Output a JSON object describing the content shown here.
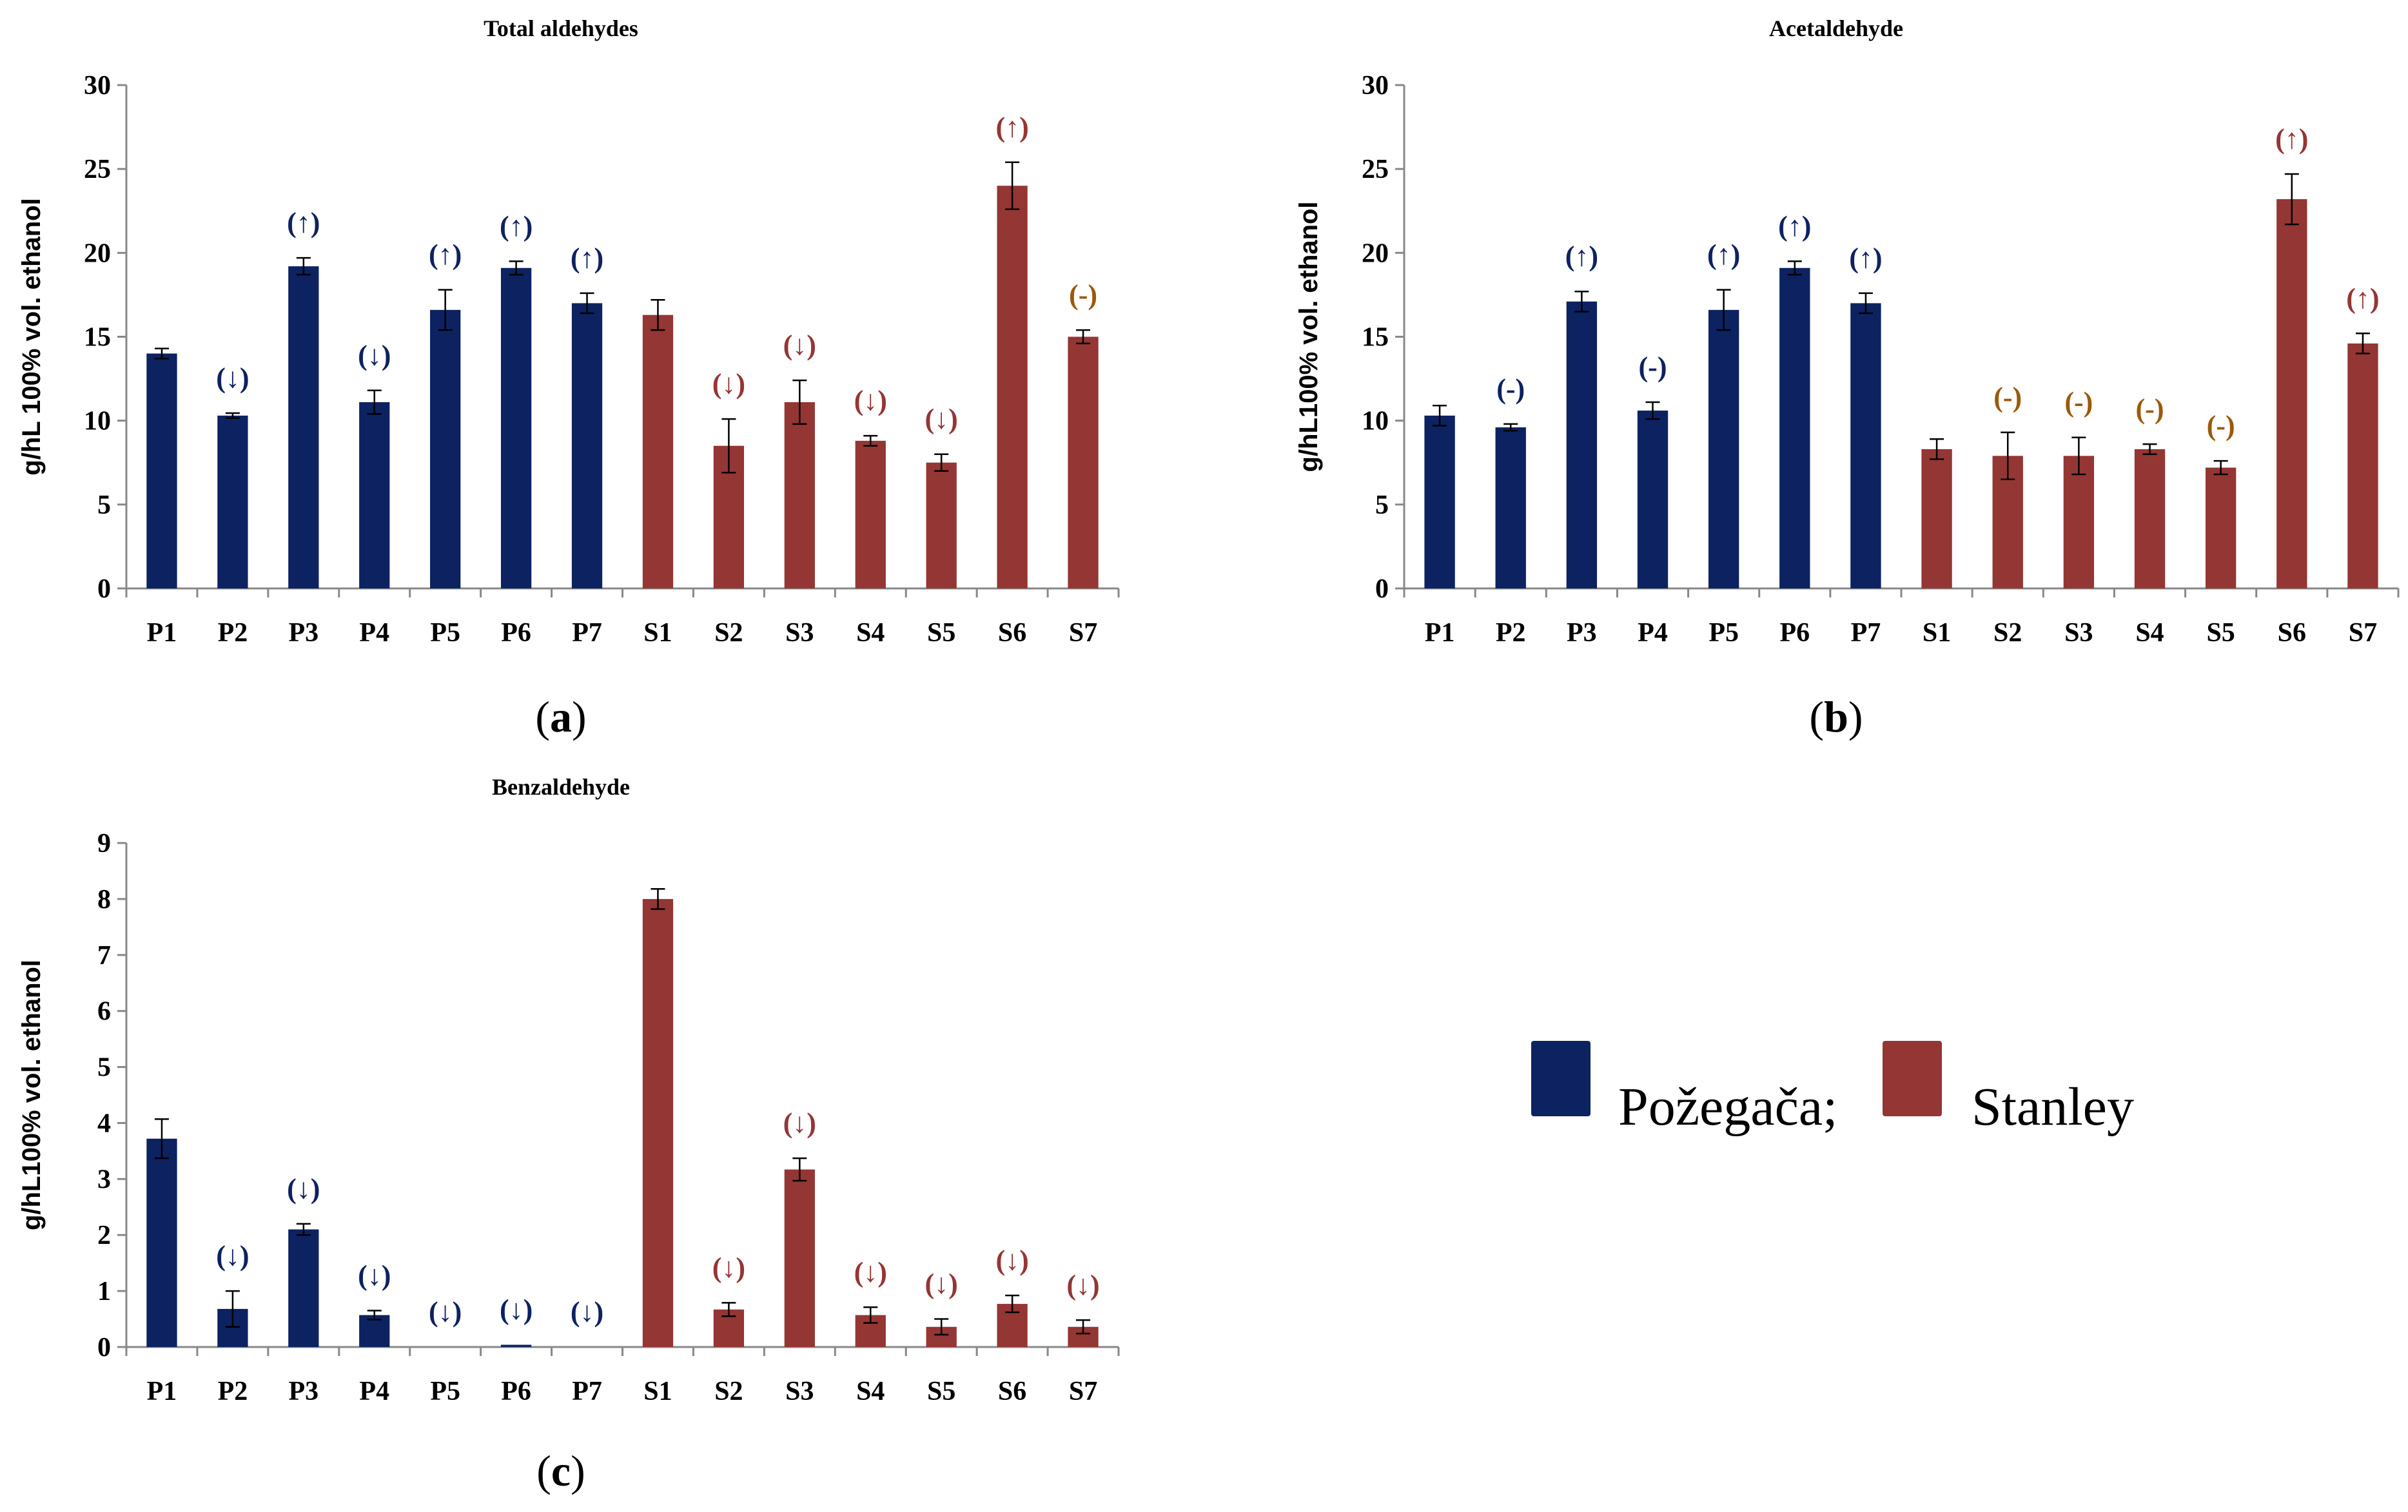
{
  "colors": {
    "pozegaca": "#0d2260",
    "stanley": "#943634",
    "neutral": "#9b5a0a",
    "axis": "#888888",
    "error": "#000000"
  },
  "legend": {
    "pozegaca_label": "Požegača;",
    "stanley_label": "Stanley"
  },
  "chart_data": [
    {
      "id": "a",
      "type": "bar",
      "title": "Total aldehydes",
      "ylabel": "g/hL 100% vol. ethanol",
      "xlabel": "",
      "caption_open": "(",
      "caption_letter": "a",
      "caption_close": ")",
      "ylim": [
        0,
        30
      ],
      "yticks": [
        "0",
        "5",
        "10",
        "15",
        "20",
        "25",
        "30"
      ],
      "categories": [
        "P1",
        "P2",
        "P3",
        "P4",
        "P5",
        "P6",
        "P7",
        "S1",
        "S2",
        "S3",
        "S4",
        "S5",
        "S6",
        "S7"
      ],
      "values": [
        14.0,
        10.3,
        19.2,
        11.1,
        16.6,
        19.1,
        17.0,
        16.3,
        8.5,
        11.1,
        8.8,
        7.5,
        24.0,
        15.0
      ],
      "errors": [
        0.3,
        0.15,
        0.5,
        0.7,
        1.2,
        0.4,
        0.6,
        0.9,
        1.6,
        1.3,
        0.3,
        0.5,
        1.4,
        0.4
      ],
      "groups": [
        "P",
        "P",
        "P",
        "P",
        "P",
        "P",
        "P",
        "S",
        "S",
        "S",
        "S",
        "S",
        "S",
        "S"
      ],
      "annotations": [
        "",
        "(↓)",
        "(↑)",
        "(↓)",
        "(↑)",
        "(↑)",
        "(↑)",
        "",
        "(↓)",
        "(↓)",
        "(↓)",
        "(↓)",
        "(↑)",
        "(-)"
      ],
      "annotation_styles": [
        "",
        "P",
        "P",
        "P",
        "P",
        "P",
        "P",
        "",
        "S",
        "S",
        "S",
        "S",
        "S",
        "N"
      ]
    },
    {
      "id": "b",
      "type": "bar",
      "title": "Acetaldehyde",
      "ylabel": "g/hL100% vol. ethanol",
      "xlabel": "",
      "caption_open": "(",
      "caption_letter": "b",
      "caption_close": ")",
      "ylim": [
        0,
        30
      ],
      "yticks": [
        "0",
        "5",
        "10",
        "15",
        "20",
        "25",
        "30"
      ],
      "categories": [
        "P1",
        "P2",
        "P3",
        "P4",
        "P5",
        "P6",
        "P7",
        "S1",
        "S2",
        "S3",
        "S4",
        "S5",
        "S6",
        "S7"
      ],
      "values": [
        10.3,
        9.6,
        17.1,
        10.6,
        16.6,
        19.1,
        17.0,
        8.3,
        7.9,
        7.9,
        8.3,
        7.2,
        23.2,
        14.6
      ],
      "errors": [
        0.6,
        0.2,
        0.6,
        0.5,
        1.2,
        0.4,
        0.6,
        0.6,
        1.4,
        1.1,
        0.3,
        0.4,
        1.5,
        0.6
      ],
      "groups": [
        "P",
        "P",
        "P",
        "P",
        "P",
        "P",
        "P",
        "S",
        "S",
        "S",
        "S",
        "S",
        "S",
        "S"
      ],
      "annotations": [
        "",
        "(-)",
        "(↑)",
        "(-)",
        "(↑)",
        "(↑)",
        "(↑)",
        "",
        "(-)",
        "(-)",
        "(-)",
        "(-)",
        "(↑)",
        "(↑)"
      ],
      "annotation_styles": [
        "",
        "P",
        "P",
        "P",
        "P",
        "P",
        "P",
        "",
        "N",
        "N",
        "N",
        "N",
        "S",
        "S"
      ]
    },
    {
      "id": "c",
      "type": "bar",
      "title": "Benzaldehyde",
      "ylabel": "g/hL100% vol. ethanol",
      "xlabel": "",
      "caption_open": "(",
      "caption_letter": "c",
      "caption_close": ")",
      "ylim": [
        0,
        9
      ],
      "yticks": [
        "0",
        "1",
        "2",
        "3",
        "4",
        "5",
        "6",
        "7",
        "8",
        "9"
      ],
      "categories": [
        "P1",
        "P2",
        "P3",
        "P4",
        "P5",
        "P6",
        "P7",
        "S1",
        "S2",
        "S3",
        "S4",
        "S5",
        "S6",
        "S7"
      ],
      "values": [
        3.72,
        0.68,
        2.1,
        0.57,
        0.0,
        0.04,
        0.0,
        8.0,
        0.67,
        3.17,
        0.57,
        0.36,
        0.77,
        0.36
      ],
      "errors": [
        0.35,
        0.32,
        0.1,
        0.08,
        0.0,
        0.0,
        0.0,
        0.18,
        0.12,
        0.2,
        0.14,
        0.14,
        0.15,
        0.12
      ],
      "groups": [
        "P",
        "P",
        "P",
        "P",
        "P",
        "P",
        "P",
        "S",
        "S",
        "S",
        "S",
        "S",
        "S",
        "S"
      ],
      "annotations": [
        "",
        "(↓)",
        "(↓)",
        "(↓)",
        "(↓)",
        "(↓)",
        "(↓)",
        "",
        "(↓)",
        "(↓)",
        "(↓)",
        "(↓)",
        "(↓)",
        "(↓)"
      ],
      "annotation_styles": [
        "",
        "P",
        "P",
        "P",
        "P",
        "P",
        "P",
        "",
        "S",
        "S",
        "S",
        "S",
        "S",
        "S"
      ]
    }
  ]
}
